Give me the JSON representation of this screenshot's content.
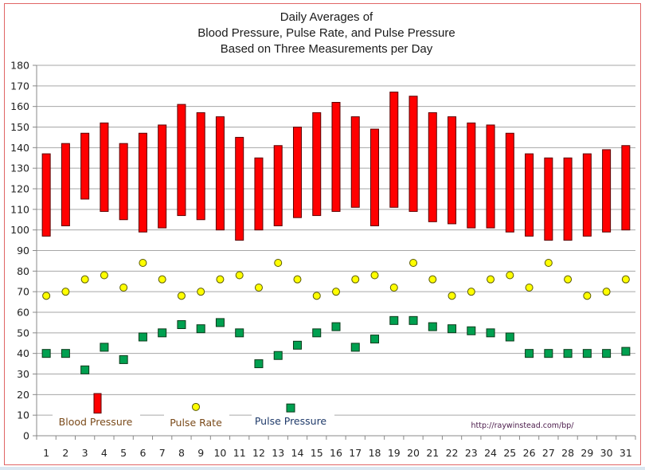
{
  "chart_data": {
    "type": "bar",
    "subtype": "floating-range-with-markers",
    "title_lines": [
      "Daily Averages of",
      "Blood Pressure, Pulse Rate, and Pulse Pressure",
      "Based on Three Measurements per Day"
    ],
    "xlabel": "",
    "ylabel": "",
    "ylim": [
      0,
      180
    ],
    "y_ticks": [
      0,
      10,
      20,
      30,
      40,
      50,
      60,
      70,
      80,
      90,
      100,
      110,
      120,
      130,
      140,
      150,
      160,
      170,
      180
    ],
    "grid": true,
    "categories": [
      "1",
      "2",
      "3",
      "4",
      "5",
      "6",
      "7",
      "8",
      "9",
      "10",
      "11",
      "12",
      "13",
      "14",
      "15",
      "16",
      "17",
      "18",
      "19",
      "20",
      "21",
      "22",
      "23",
      "24",
      "25",
      "26",
      "27",
      "28",
      "29",
      "30",
      "31"
    ],
    "series": [
      {
        "name": "Blood Pressure",
        "marker": "floating-bar",
        "color": "#ff0000",
        "systolic": [
          137,
          142,
          147,
          152,
          142,
          147,
          151,
          161,
          157,
          155,
          145,
          135,
          141,
          150,
          157,
          162,
          155,
          149,
          167,
          165,
          157,
          155,
          152,
          151,
          147,
          137,
          135,
          135,
          137,
          139,
          141
        ],
        "diastolic": [
          97,
          102,
          115,
          109,
          105,
          99,
          101,
          107,
          105,
          100,
          95,
          100,
          102,
          106,
          107,
          109,
          111,
          102,
          111,
          109,
          104,
          103,
          101,
          101,
          99,
          97,
          95,
          95,
          97,
          99,
          100
        ]
      },
      {
        "name": "Pulse Rate",
        "marker": "circle",
        "color": "#ffff00",
        "values": [
          68,
          70,
          76,
          78,
          72,
          84,
          76,
          68,
          70,
          76,
          78,
          72,
          84,
          76,
          68,
          70,
          76,
          78,
          72,
          84,
          76,
          68,
          70,
          76,
          78,
          72,
          84,
          76,
          68,
          70,
          76
        ]
      },
      {
        "name": "Pulse Pressure",
        "marker": "square",
        "color": "#00a050",
        "values": [
          40,
          40,
          32,
          43,
          37,
          48,
          50,
          54,
          52,
          55,
          50,
          35,
          39,
          44,
          50,
          53,
          43,
          47,
          56,
          56,
          53,
          52,
          51,
          50,
          48,
          40,
          40,
          40,
          40,
          40,
          41
        ]
      }
    ],
    "legend": {
      "placement": "bottom-inside",
      "entries": [
        {
          "label": "Blood  Pressure",
          "color": "#7a4a1a"
        },
        {
          "label": "Pulse Rate",
          "color": "#7a4a1a"
        },
        {
          "label": "Pulse Pressure",
          "color": "#1f3a6a"
        }
      ],
      "sample_values": {
        "bp_top": 20.5,
        "bp_bottom": 11,
        "pulse_rate": 14,
        "pulse_pressure": 13.5
      }
    },
    "annotation": "http://raywinstead.com/bp/"
  }
}
